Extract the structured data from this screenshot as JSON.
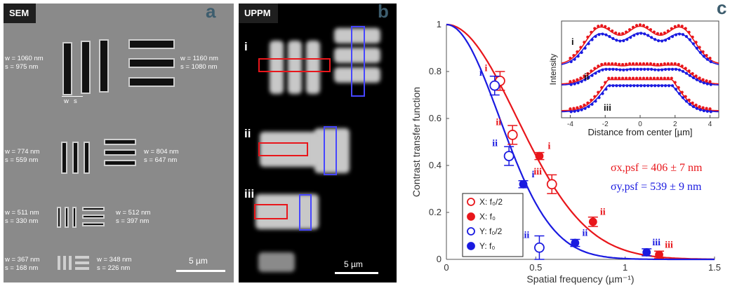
{
  "panel_a": {
    "tag": "SEM",
    "letter": "a",
    "labels": [
      {
        "w": "w = 1060 nm",
        "s": "s = 975 nm"
      },
      {
        "w": "w = 1160 nm",
        "s": "s = 1080 nm"
      },
      {
        "w": "w = 774 nm",
        "s": "s = 559 nm"
      },
      {
        "w": "w = 804 nm",
        "s": "s = 647 nm"
      },
      {
        "w": "w = 511 nm",
        "s": "s = 330 nm"
      },
      {
        "w": "w = 512 nm",
        "s": "s = 397 nm"
      },
      {
        "w": "w = 367 nm",
        "s": "s = 168 nm"
      },
      {
        "w": "w = 348 nm",
        "s": "s = 226 nm"
      }
    ],
    "w_marker": "w",
    "s_marker": "s",
    "scale": "5 µm"
  },
  "panel_b": {
    "tag": "UPPM",
    "letter": "b",
    "sections": [
      "i",
      "ii",
      "iii"
    ],
    "scale": "5 µm"
  },
  "panel_c": {
    "letter": "c"
  },
  "colors": {
    "x": "#e8161b",
    "y": "#1a1ae0"
  },
  "chart_data": [
    {
      "type": "scatter",
      "xlabel": "Spatial frequency (µm⁻¹)",
      "ylabel": "Contrast transfer function",
      "xlim": [
        0,
        1.5
      ],
      "ylim": [
        0,
        1
      ],
      "xticks": [
        "0",
        "0.5",
        "1",
        "1.5"
      ],
      "yticks": [
        "0",
        "0.2",
        "0.4",
        "0.6",
        "0.8",
        "1"
      ],
      "series": [
        {
          "name": "X: f₀/2",
          "filled": false,
          "color": "#e8161b",
          "points": [
            [
              0.3,
              0.76,
              0.04
            ],
            [
              0.37,
              0.53,
              0.04
            ],
            [
              0.59,
              0.32,
              0.04
            ]
          ],
          "labels": [
            "i",
            "ii",
            "iii"
          ]
        },
        {
          "name": "X: f₀",
          "filled": true,
          "color": "#e8161b",
          "points": [
            [
              0.52,
              0.44,
              0.015
            ],
            [
              0.82,
              0.16,
              0.02
            ],
            [
              1.19,
              0.02,
              0.015
            ]
          ],
          "labels": [
            "i",
            "ii",
            "iii"
          ]
        },
        {
          "name": "Y: f₀/2",
          "filled": false,
          "color": "#1a1ae0",
          "points": [
            [
              0.27,
              0.74,
              0.04
            ],
            [
              0.35,
              0.44,
              0.04
            ],
            [
              0.52,
              0.05,
              0.05
            ]
          ],
          "labels": [
            "i",
            "ii",
            "iii"
          ]
        },
        {
          "name": "Y: f₀",
          "filled": true,
          "color": "#1a1ae0",
          "points": [
            [
              0.43,
              0.32,
              0.015
            ],
            [
              0.72,
              0.07,
              0.015
            ],
            [
              1.12,
              0.03,
              0.015
            ]
          ],
          "labels": [
            "i",
            "ii",
            "iii"
          ]
        }
      ],
      "fits": [
        {
          "color": "#e8161b",
          "sigma_um": 0.406
        },
        {
          "color": "#1a1ae0",
          "sigma_um": 0.539
        }
      ],
      "annotations": {
        "x": "σx,psf = 406 ± 7 nm",
        "y": "σy,psf = 539 ± 9 nm"
      }
    },
    {
      "type": "line",
      "xlabel": "Distance from center [µm]",
      "ylabel": "Intensity",
      "xlim": [
        -4.5,
        4.5
      ],
      "xticks": [
        "-4",
        "-2",
        "0",
        "2",
        "4"
      ],
      "rows": [
        "i",
        "ii",
        "iii"
      ]
    }
  ]
}
